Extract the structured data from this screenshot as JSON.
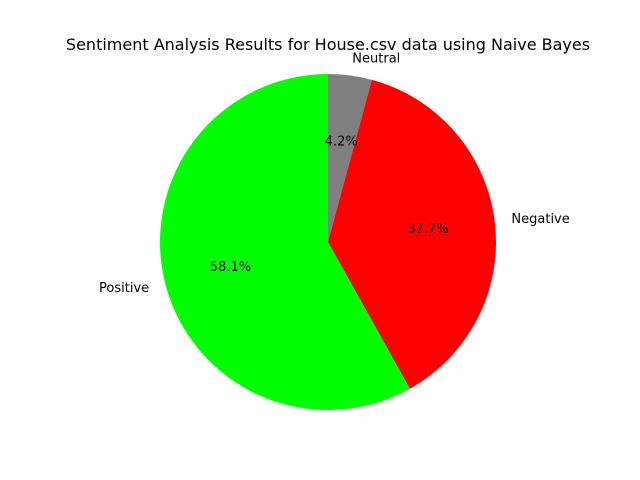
{
  "chart_data": {
    "type": "pie",
    "title": "Sentiment Analysis Results for House.csv data using Naive Bayes",
    "start_angle_deg": 90,
    "direction": "clockwise",
    "slices": [
      {
        "label": "Neutral",
        "value": 4.2,
        "pct_label": "4.2%",
        "color": "#808080"
      },
      {
        "label": "Negative",
        "value": 37.7,
        "pct_label": "37.7%",
        "color": "#ff0000"
      },
      {
        "label": "Positive",
        "value": 58.1,
        "pct_label": "58.1%",
        "color": "#00ff00"
      }
    ]
  }
}
